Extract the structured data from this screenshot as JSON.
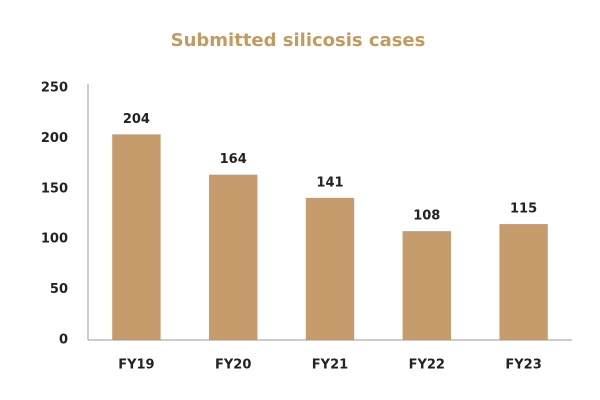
{
  "chart_data": {
    "type": "bar",
    "title": "Submitted silicosis cases",
    "categories": [
      "FY19",
      "FY20",
      "FY21",
      "FY22",
      "FY23"
    ],
    "values": [
      204,
      164,
      141,
      108,
      115
    ],
    "color": "#c69c6d",
    "title_color": "#c49a5e",
    "ylim": [
      0,
      250
    ],
    "yticks": [
      0,
      50,
      100,
      150,
      200,
      250
    ],
    "grid": false,
    "data_labels": true
  }
}
